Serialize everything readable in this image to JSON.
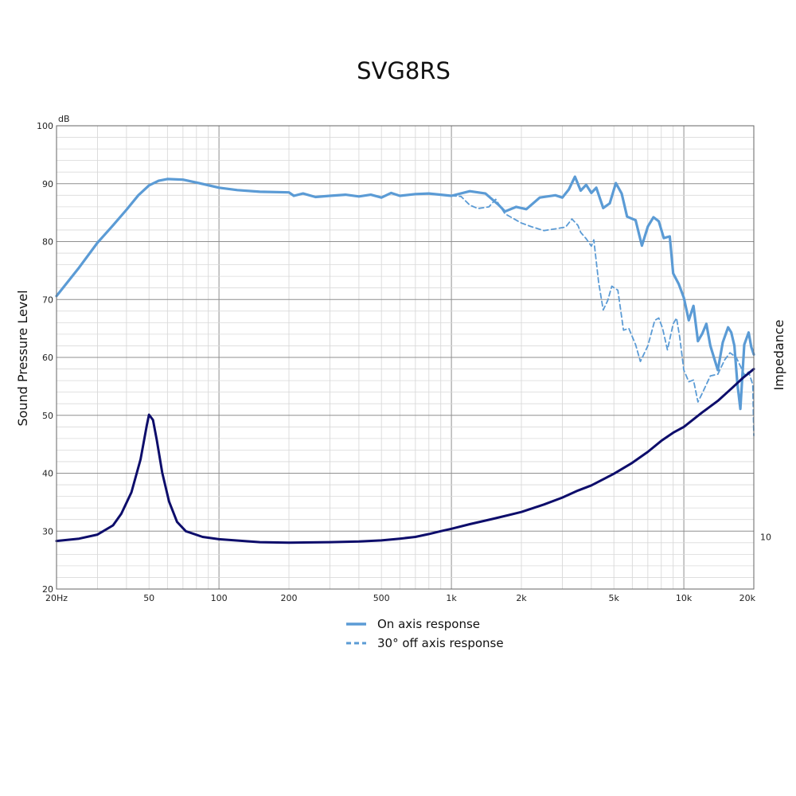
{
  "chart_data": {
    "type": "line",
    "title": "SVG8RS",
    "ylabel": "Sound Pressure Level",
    "y2label": "Impedance",
    "yunit": "dB",
    "xscale": "log",
    "xlim": [
      20,
      20000
    ],
    "ylim": [
      20,
      100
    ],
    "grid": true,
    "legend_position": "bottom",
    "x_ticks": [
      {
        "value": 20,
        "label": "20Hz"
      },
      {
        "value": 50,
        "label": "50"
      },
      {
        "value": 100,
        "label": "100"
      },
      {
        "value": 200,
        "label": "200"
      },
      {
        "value": 500,
        "label": "500"
      },
      {
        "value": 1000,
        "label": "1k"
      },
      {
        "value": 2000,
        "label": "2k"
      },
      {
        "value": 5000,
        "label": "5k"
      },
      {
        "value": 10000,
        "label": "10k"
      },
      {
        "value": 20000,
        "label": "20k"
      }
    ],
    "y_ticks": [
      {
        "value": 20,
        "label": "20"
      },
      {
        "value": 30,
        "label": "30"
      },
      {
        "value": 40,
        "label": "40"
      },
      {
        "value": 50,
        "label": "50"
      },
      {
        "value": 60,
        "label": "60"
      },
      {
        "value": 70,
        "label": "70"
      },
      {
        "value": 80,
        "label": "80"
      },
      {
        "value": 90,
        "label": "90"
      },
      {
        "value": 100,
        "label": "100"
      }
    ],
    "y2_ticks": [
      {
        "value": 10,
        "label": "10"
      }
    ],
    "series": [
      {
        "name": "On axis response",
        "color": "#5b9bd5",
        "style": "solid",
        "axis": "spl",
        "points": [
          [
            20,
            70.6
          ],
          [
            25,
            75.5
          ],
          [
            30,
            79.8
          ],
          [
            35,
            82.8
          ],
          [
            40,
            85.5
          ],
          [
            45,
            88
          ],
          [
            50,
            89.7
          ],
          [
            55,
            90.5
          ],
          [
            60,
            90.8
          ],
          [
            70,
            90.7
          ],
          [
            80,
            90.2
          ],
          [
            100,
            89.3
          ],
          [
            120,
            88.9
          ],
          [
            150,
            88.6
          ],
          [
            200,
            88.5
          ],
          [
            210,
            87.9
          ],
          [
            230,
            88.3
          ],
          [
            260,
            87.7
          ],
          [
            300,
            87.9
          ],
          [
            350,
            88.1
          ],
          [
            400,
            87.8
          ],
          [
            450,
            88.1
          ],
          [
            500,
            87.6
          ],
          [
            550,
            88.4
          ],
          [
            600,
            87.9
          ],
          [
            700,
            88.2
          ],
          [
            800,
            88.3
          ],
          [
            900,
            88.1
          ],
          [
            1000,
            87.9
          ],
          [
            1200,
            88.7
          ],
          [
            1400,
            88.3
          ],
          [
            1600,
            86.3
          ],
          [
            1700,
            85.2
          ],
          [
            1900,
            86
          ],
          [
            2100,
            85.6
          ],
          [
            2400,
            87.6
          ],
          [
            2800,
            88
          ],
          [
            3000,
            87.6
          ],
          [
            3200,
            89
          ],
          [
            3400,
            91.2
          ],
          [
            3600,
            88.8
          ],
          [
            3800,
            89.8
          ],
          [
            4000,
            88.4
          ],
          [
            4200,
            89.3
          ],
          [
            4500,
            85.8
          ],
          [
            4800,
            86.6
          ],
          [
            5100,
            90.1
          ],
          [
            5400,
            88.3
          ],
          [
            5700,
            84.3
          ],
          [
            6200,
            83.7
          ],
          [
            6600,
            79.3
          ],
          [
            7000,
            82.6
          ],
          [
            7400,
            84.2
          ],
          [
            7800,
            83.5
          ],
          [
            8200,
            80.6
          ],
          [
            8700,
            80.9
          ],
          [
            9000,
            74.5
          ],
          [
            9500,
            72.7
          ],
          [
            10000,
            70.3
          ],
          [
            10500,
            66.4
          ],
          [
            11000,
            68.9
          ],
          [
            11500,
            62.8
          ],
          [
            12000,
            64.1
          ],
          [
            12500,
            65.8
          ],
          [
            13000,
            62
          ],
          [
            14000,
            57.8
          ],
          [
            14700,
            62.6
          ],
          [
            15500,
            65.2
          ],
          [
            16000,
            64.3
          ],
          [
            16500,
            62
          ],
          [
            17000,
            55.4
          ],
          [
            17500,
            51.1
          ],
          [
            18200,
            62.2
          ],
          [
            19000,
            64.3
          ],
          [
            19500,
            61.8
          ],
          [
            20000,
            60.5
          ]
        ]
      },
      {
        "name": "30° off axis response",
        "color": "#5b9bd5",
        "style": "dashed",
        "axis": "spl",
        "points": [
          [
            1000,
            87.9
          ],
          [
            1100,
            87.8
          ],
          [
            1200,
            86.3
          ],
          [
            1300,
            85.7
          ],
          [
            1450,
            86
          ],
          [
            1550,
            87.3
          ],
          [
            1700,
            84.8
          ],
          [
            2000,
            83.2
          ],
          [
            2200,
            82.6
          ],
          [
            2500,
            81.9
          ],
          [
            2800,
            82.2
          ],
          [
            3100,
            82.5
          ],
          [
            3300,
            83.9
          ],
          [
            3500,
            82.8
          ],
          [
            3600,
            81.6
          ],
          [
            3800,
            80.5
          ],
          [
            4000,
            79.2
          ],
          [
            4100,
            80.3
          ],
          [
            4300,
            72.9
          ],
          [
            4500,
            68.2
          ],
          [
            4700,
            69.8
          ],
          [
            4900,
            72.3
          ],
          [
            5200,
            71.6
          ],
          [
            5500,
            64.7
          ],
          [
            5800,
            65
          ],
          [
            6200,
            62.2
          ],
          [
            6500,
            59.3
          ],
          [
            7000,
            62
          ],
          [
            7500,
            66.4
          ],
          [
            7800,
            66.8
          ],
          [
            8100,
            65
          ],
          [
            8500,
            61.3
          ],
          [
            9000,
            65.8
          ],
          [
            9300,
            66.8
          ],
          [
            9600,
            63.5
          ],
          [
            10000,
            57.8
          ],
          [
            10500,
            55.8
          ],
          [
            11000,
            56.1
          ],
          [
            11500,
            52.3
          ],
          [
            12000,
            53.8
          ],
          [
            13000,
            56.8
          ],
          [
            14000,
            57.1
          ],
          [
            15000,
            59.6
          ],
          [
            15800,
            60.8
          ],
          [
            16800,
            60
          ],
          [
            17500,
            58.5
          ],
          [
            18200,
            57
          ],
          [
            19000,
            57.5
          ],
          [
            19800,
            55.3
          ],
          [
            20000,
            46.5
          ]
        ]
      },
      {
        "name": "Impedance",
        "color": "#0d0d6b",
        "style": "solid",
        "axis": "impedance",
        "points": [
          [
            20,
            28.3
          ],
          [
            25,
            28.7
          ],
          [
            30,
            29.4
          ],
          [
            35,
            31
          ],
          [
            38,
            33
          ],
          [
            42,
            36.7
          ],
          [
            46,
            42.4
          ],
          [
            49,
            48.4
          ],
          [
            50,
            50.1
          ],
          [
            52,
            49.2
          ],
          [
            54,
            45.7
          ],
          [
            57,
            40.1
          ],
          [
            61,
            35.1
          ],
          [
            66,
            31.6
          ],
          [
            72,
            30
          ],
          [
            85,
            29
          ],
          [
            100,
            28.6
          ],
          [
            150,
            28.1
          ],
          [
            200,
            28
          ],
          [
            300,
            28.1
          ],
          [
            400,
            28.2
          ],
          [
            500,
            28.4
          ],
          [
            600,
            28.7
          ],
          [
            700,
            29
          ],
          [
            800,
            29.5
          ],
          [
            900,
            30
          ],
          [
            1000,
            30.4
          ],
          [
            1200,
            31.2
          ],
          [
            1500,
            32.1
          ],
          [
            2000,
            33.3
          ],
          [
            2500,
            34.6
          ],
          [
            3000,
            35.8
          ],
          [
            3500,
            37
          ],
          [
            4000,
            37.9
          ],
          [
            5000,
            39.9
          ],
          [
            6000,
            41.8
          ],
          [
            7000,
            43.7
          ],
          [
            8000,
            45.6
          ],
          [
            9000,
            47
          ],
          [
            10000,
            48
          ],
          [
            12000,
            50.5
          ],
          [
            14000,
            52.5
          ],
          [
            16000,
            54.6
          ],
          [
            18000,
            56.5
          ],
          [
            20000,
            58
          ]
        ]
      }
    ],
    "legend": [
      {
        "label": "On axis response",
        "style": "solid",
        "color": "#5b9bd5"
      },
      {
        "label": "30° off axis response",
        "style": "dashed",
        "color": "#5b9bd5"
      }
    ]
  }
}
